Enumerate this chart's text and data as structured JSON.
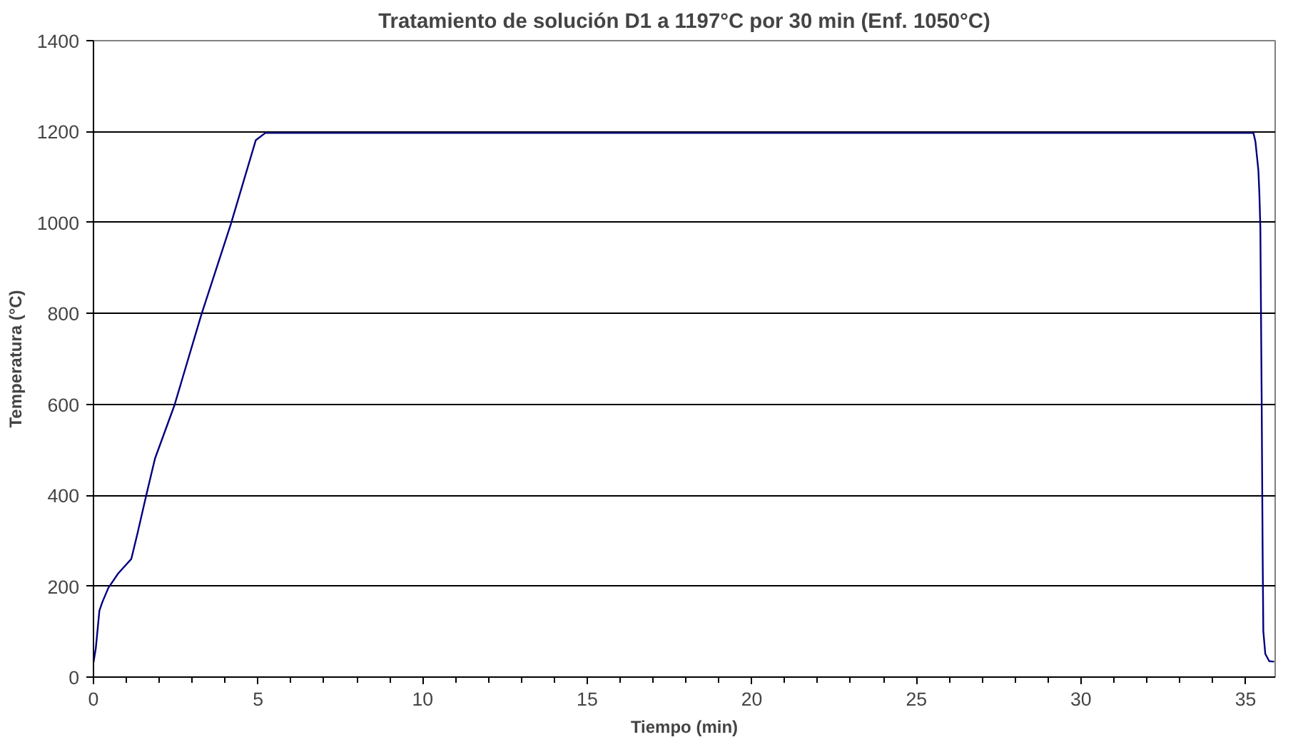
{
  "chart_data": {
    "type": "line",
    "title": "Tratamiento de solución D1 a 1197°C por 30 min (Enf. 1050°C)",
    "xlabel": "Tiempo (min)",
    "ylabel": "Temperatura (°C)",
    "x": [
      0,
      0.07,
      0.18,
      0.27,
      0.45,
      0.75,
      1.15,
      1.34,
      1.6,
      1.87,
      2.46,
      3.28,
      4.18,
      4.93,
      5.22,
      35.24,
      35.3,
      35.39,
      35.42,
      35.45,
      35.49,
      35.52,
      35.54,
      35.6,
      35.72,
      35.87
    ],
    "series": [
      {
        "color": "#000080",
        "values": [
          32,
          63,
          146,
          165,
          196,
          228,
          260,
          317,
          399,
          481,
          598,
          798,
          998,
          1181,
          1197,
          1197,
          1178,
          1115,
          1064,
          988,
          608,
          266,
          101,
          51,
          35,
          34
        ]
      }
    ],
    "xlim": [
      0,
      35.9
    ],
    "xticks": [
      0,
      5,
      10,
      15,
      20,
      25,
      30,
      35
    ],
    "ylim": [
      0,
      1400
    ],
    "yticks": [
      0,
      200,
      400,
      600,
      800,
      1000,
      1200,
      1400
    ],
    "grid": "y",
    "marker": "none",
    "line_style": "solid"
  }
}
